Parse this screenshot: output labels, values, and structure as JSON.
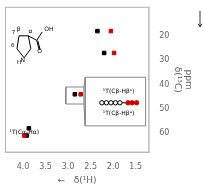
{
  "chart_data": {
    "type": "scatter",
    "xlabel": "←   δ(¹H)",
    "ylabel": [
      "ppm",
      "δ(¹³C)"
    ],
    "xlim": [
      4.4,
      1.2
    ],
    "ylim": [
      68,
      8
    ],
    "xticks": [
      {
        "value": 4,
        "label": "4.0"
      },
      3.5,
      {
        "value": 3,
        "label": "3.0"
      },
      2.5,
      {
        "value": 2,
        "label": "2.0"
      },
      1.5
    ],
    "yticks": [
      20,
      30,
      40,
      50,
      60
    ],
    "grid": false,
    "series": [
      {
        "type": "scatter",
        "marker": "square",
        "color": "#000000",
        "x": [
          2.35,
          2.2,
          2.85,
          3.87,
          3.92
        ],
        "values": [
          18,
          27,
          44,
          58,
          61
        ]
      },
      {
        "type": "scatter",
        "marker": "square",
        "color": "#cc0000",
        "x": [
          2.05,
          1.98,
          2.72,
          3.97
        ],
        "values": [
          18,
          27,
          44,
          61
        ]
      },
      {
        "type": "line",
        "color": "#888888",
        "x": [
          2.65,
          3.05,
          3.05,
          2.65,
          2.65
        ],
        "values": [
          41,
          41,
          48,
          48,
          41
        ]
      },
      {
        "type": "line",
        "color": "#888888",
        "x": [
          2.62,
          2.65
        ],
        "values": [
          37,
          41
        ]
      },
      {
        "type": "line",
        "color": "#888888",
        "x": [
          2.62,
          2.65
        ],
        "values": [
          57,
          48
        ]
      },
      {
        "type": "line",
        "color": "#888888",
        "x": [
          1.28,
          2.62,
          2.62,
          1.28,
          1.28
        ],
        "values": [
          37,
          37,
          57,
          57,
          37
        ]
      },
      {
        "type": "line",
        "color": "#000000",
        "x": [
          1.45,
          2.28
        ],
        "values": [
          47.5,
          47.5
        ]
      },
      {
        "type": "scatter",
        "marker": "open_circle",
        "color": "#000000",
        "x": [
          1.85,
          1.95,
          2.05,
          2.15,
          2.25
        ],
        "values": [
          47.5,
          47.5,
          47.5,
          47.5,
          47.5
        ]
      },
      {
        "type": "scatter",
        "marker": "circle",
        "color": "#cc0000",
        "x": [
          1.48,
          1.58,
          1.67
        ],
        "values": [
          47.5,
          47.5,
          47.5
        ]
      }
    ],
    "annotations": [
      {
        "text": "¹T(Cβ-Hβˢ)",
        "x": 1.88,
        "y": 44.2
      },
      {
        "text": "¹T(Cβ-Hβᵃ)",
        "x": 1.88,
        "y": 50.8
      },
      {
        "text": "¹T(Cα-Hα)",
        "x": 4.3,
        "y": 59.5
      },
      {
        "text": "N"
      },
      {
        "text": "H"
      },
      {
        "text": "α"
      },
      {
        "text": "β"
      },
      {
        "text": "6"
      },
      {
        "text": "7"
      },
      {
        "text": "O"
      },
      {
        "text": "OH"
      }
    ]
  }
}
